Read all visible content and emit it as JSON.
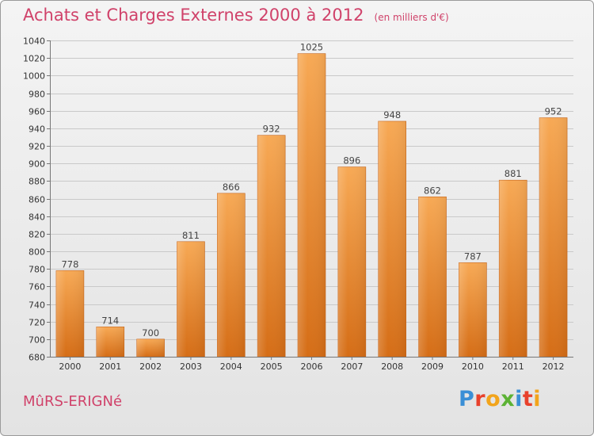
{
  "header": {
    "title": "Achats et Charges Externes 2000 à 2012",
    "unit": "(en milliers d'€)"
  },
  "footer": {
    "commune": "MûRS-ERIGNé",
    "brand_letters": [
      "P",
      "r",
      "o",
      "x",
      "i",
      "t",
      "i"
    ],
    "brand_colors": [
      "#3a8fd6",
      "#e8412c",
      "#f2a41b",
      "#5cb234",
      "#3a8fd6",
      "#e8412c",
      "#f2a41b"
    ]
  },
  "colors": {
    "bar_top": "#f7a955",
    "bar_bottom": "#d56d16",
    "grid": "#c9c9c9",
    "accent_text": "#d0426a"
  },
  "chart_data": {
    "type": "bar",
    "categories": [
      "2000",
      "2001",
      "2002",
      "2003",
      "2004",
      "2005",
      "2006",
      "2007",
      "2008",
      "2009",
      "2010",
      "2011",
      "2012"
    ],
    "values": [
      778,
      714,
      700,
      811,
      866,
      932,
      1025,
      896,
      948,
      862,
      787,
      881,
      952
    ],
    "ylim": [
      680,
      1040
    ],
    "ytick_step": 20,
    "grid": true,
    "xlabel": "",
    "ylabel": ""
  }
}
